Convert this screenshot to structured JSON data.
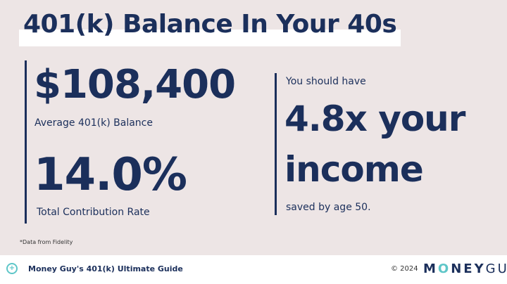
{
  "title": "401(k) Balance In Your 40s",
  "left": {
    "balance_value": "$108,400",
    "balance_label": "Average 401(k) Balance",
    "rate_value": "14.0%",
    "rate_label": "Total Contribution Rate"
  },
  "right": {
    "intro": "You should have",
    "line1": "4.8x your",
    "line2": "income",
    "outro": "saved by age 50."
  },
  "note": "*Data from Fidelity",
  "footer": {
    "guide": "Money Guy's 401(k) Ultimate Guide",
    "copyright": "© 2024",
    "logo_text": "MONEYGUY",
    "logo_m": "M",
    "logo_o": "O",
    "logo_ney": "NEY",
    "logo_guy": "GUY",
    "icon": "plus-chat-icon"
  },
  "colors": {
    "navy": "#1b2f5b",
    "teal": "#5ec6c8",
    "background": "#ede5e5"
  }
}
